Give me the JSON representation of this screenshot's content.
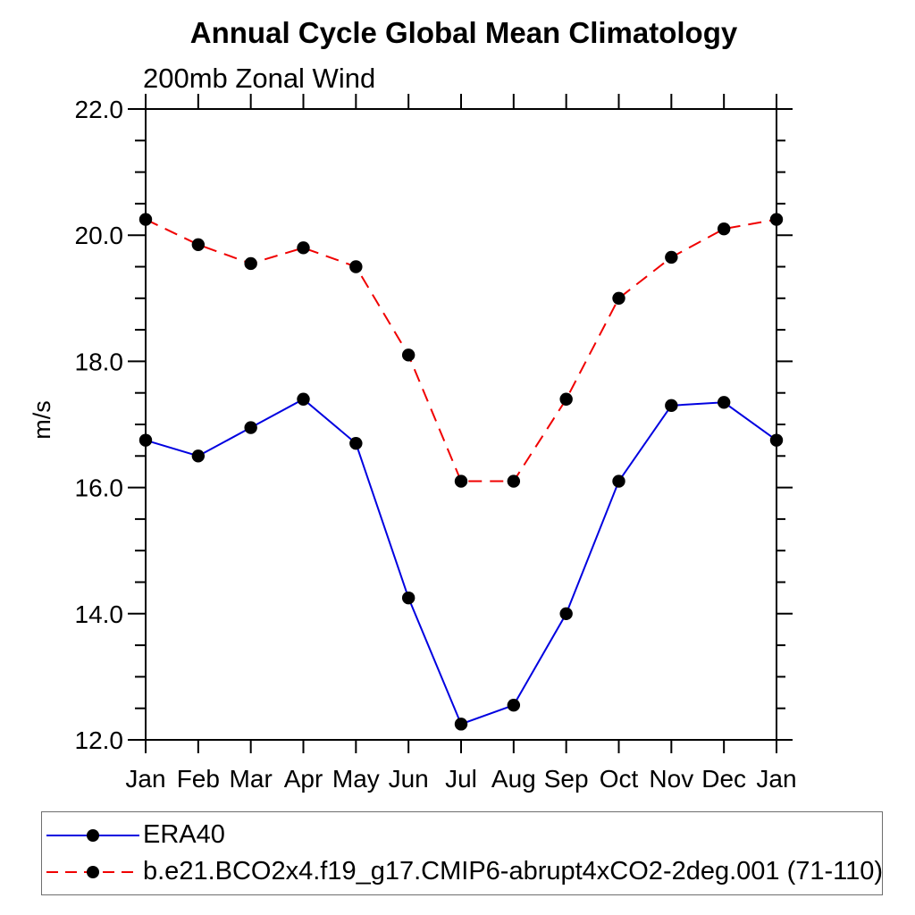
{
  "title": "Annual Cycle Global Mean Climatology",
  "subtitle": "200mb Zonal Wind",
  "ylabel": "m/s",
  "colors": {
    "era40_line": "#0000e0",
    "model_line": "#f00000",
    "marker": "#000000",
    "axis": "#000000"
  },
  "legend": {
    "items": [
      {
        "label": "ERA40",
        "color": "#0000e0",
        "style": "solid"
      },
      {
        "label": "b.e21.BCO2x4.f19_g17.CMIP6-abrupt4xCO2-2deg.001 (71-110)",
        "color": "#f00000",
        "style": "dashed"
      }
    ]
  },
  "chart_data": {
    "type": "line",
    "title": "Annual Cycle Global Mean Climatology",
    "subtitle": "200mb Zonal Wind",
    "xlabel": "",
    "ylabel": "m/s",
    "categories": [
      "Jan",
      "Feb",
      "Mar",
      "Apr",
      "May",
      "Jun",
      "Jul",
      "Aug",
      "Sep",
      "Oct",
      "Nov",
      "Dec",
      "Jan"
    ],
    "series": [
      {
        "name": "ERA40",
        "color": "#0000e0",
        "style": "solid",
        "marker": "filled-circle",
        "values": [
          16.75,
          16.5,
          16.95,
          17.4,
          16.7,
          14.25,
          12.25,
          12.55,
          14.0,
          16.1,
          17.3,
          17.35,
          16.75
        ]
      },
      {
        "name": "b.e21.BCO2x4.f19_g17.CMIP6-abrupt4xCO2-2deg.001 (71-110)",
        "color": "#f00000",
        "style": "dashed",
        "marker": "filled-circle",
        "values": [
          20.25,
          19.85,
          19.55,
          19.8,
          19.5,
          18.1,
          16.1,
          16.1,
          17.4,
          19.0,
          19.65,
          20.1,
          20.25
        ]
      }
    ],
    "ylim": [
      12.0,
      22.0
    ],
    "ytick_major": [
      12.0,
      14.0,
      16.0,
      18.0,
      20.0,
      22.0
    ],
    "ytick_labels": [
      "12.0",
      "14.0",
      "16.0",
      "18.0",
      "20.0",
      "22.0"
    ],
    "ytick_minor_step": 0.5,
    "marker_color": "#000000",
    "grid": false,
    "legend_position": "bottom-outside-box"
  }
}
